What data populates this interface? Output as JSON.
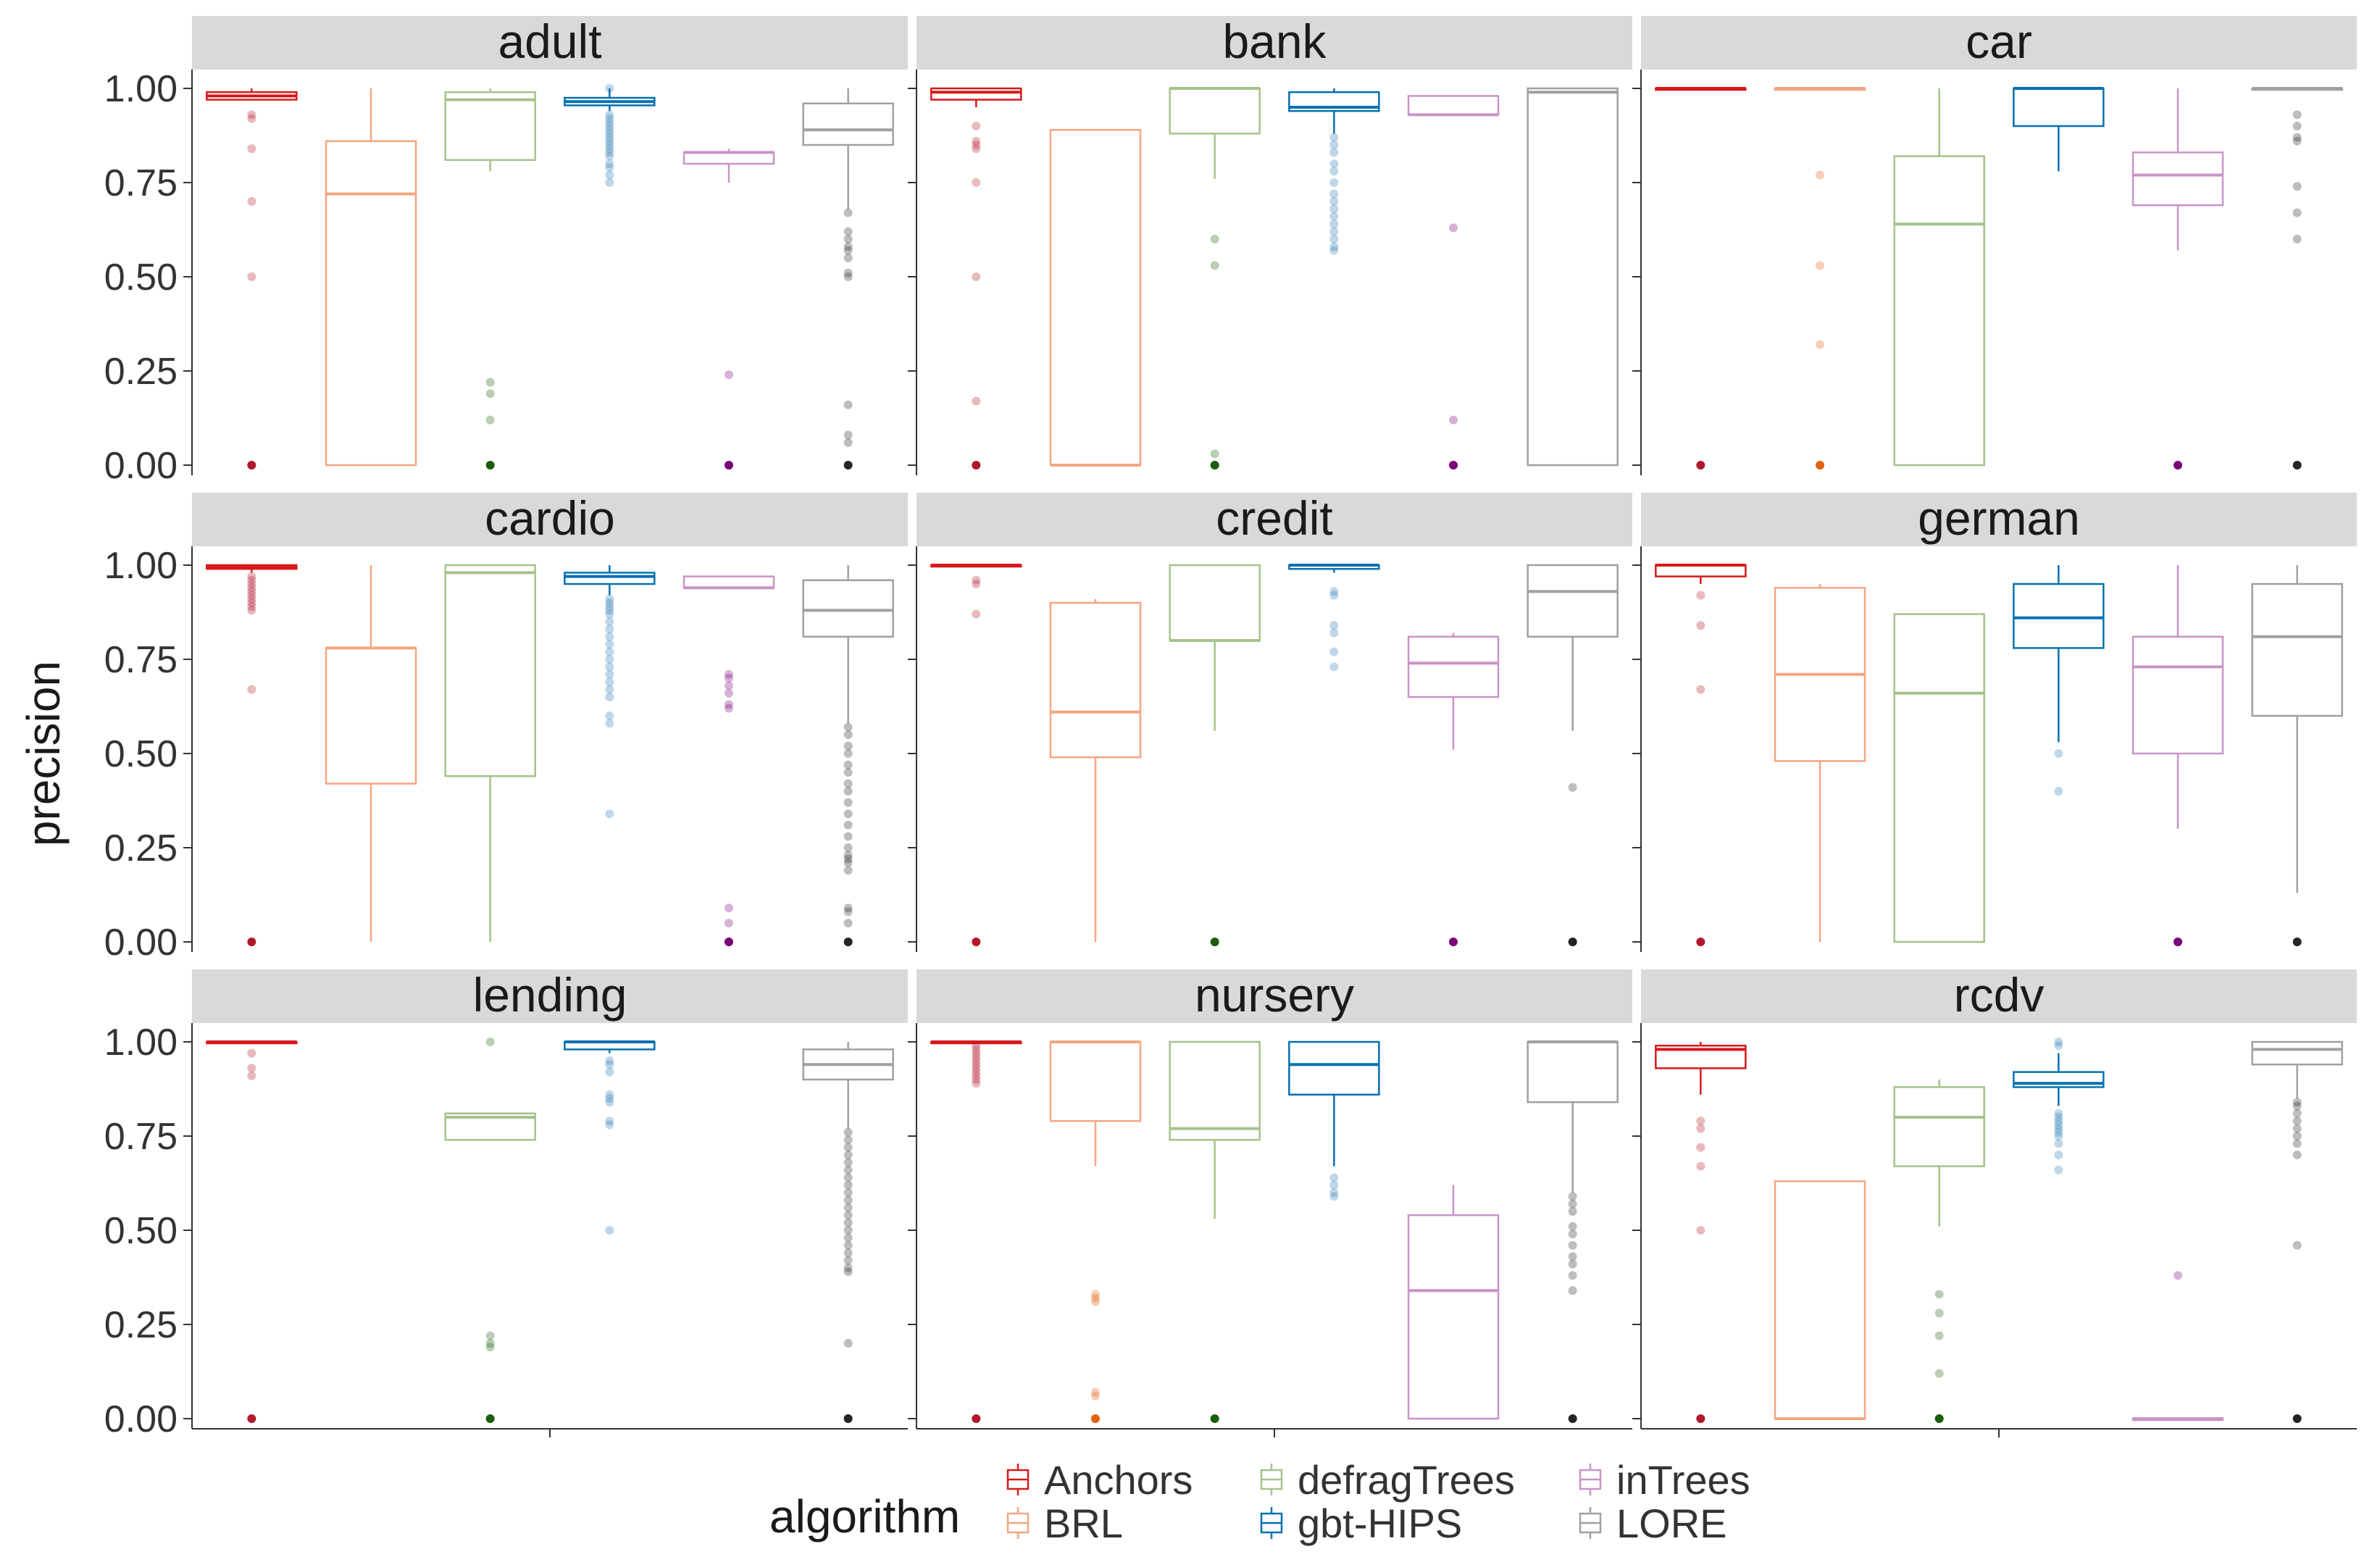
{
  "chart_data": {
    "type": "boxplot",
    "ylabel": "precision",
    "ylim": [
      0,
      1
    ],
    "yticks": [
      "0.00",
      "0.25",
      "0.50",
      "0.75",
      "1.00"
    ],
    "legend": {
      "title": "algorithm",
      "placement": "bottom",
      "entries": [
        "Anchors",
        "BRL",
        "defragTrees",
        "gbt-HIPS",
        "inTrees",
        "LORE"
      ]
    },
    "series_colors": {
      "Anchors": "#d7191c",
      "BRL": "#f4a582",
      "defragTrees": "#a6c28b",
      "gbt-HIPS": "#0571b0",
      "inTrees": "#c994c7",
      "LORE": "#a0a0a0"
    },
    "outlier_colors": {
      "Anchors": "#b2182b",
      "BRL": "#e0610e",
      "defragTrees": "#1a5e0a",
      "gbt-HIPS": "#2c7bb6",
      "inTrees": "#7a0177",
      "LORE": "#252525"
    },
    "panels": [
      {
        "name": "adult",
        "boxes": [
          {
            "alg": "Anchors",
            "q1": 0.97,
            "median": 0.98,
            "q3": 0.99,
            "whisker_low": 0.97,
            "whisker_high": 1.0,
            "outliers": [
              0.93,
              0.92,
              0.84,
              0.7,
              0.5,
              0.0
            ]
          },
          {
            "alg": "BRL",
            "q1": 0.0,
            "median": 0.72,
            "q3": 0.86,
            "whisker_low": 0.0,
            "whisker_high": 1.0,
            "outliers": []
          },
          {
            "alg": "defragTrees",
            "q1": 0.81,
            "median": 0.97,
            "q3": 0.99,
            "whisker_low": 0.78,
            "whisker_high": 1.0,
            "outliers": [
              0.22,
              0.19,
              0.12,
              0.0
            ]
          },
          {
            "alg": "gbt-HIPS",
            "q1": 0.955,
            "median": 0.965,
            "q3": 0.975,
            "whisker_low": 0.94,
            "whisker_high": 1.0,
            "outliers": [
              0.93,
              0.92,
              0.91,
              0.9,
              0.89,
              0.88,
              0.87,
              0.86,
              0.85,
              0.84,
              0.83,
              0.82,
              0.8,
              0.79,
              0.77,
              0.75,
              1.0
            ]
          },
          {
            "alg": "inTrees",
            "q1": 0.8,
            "median": 0.83,
            "q3": 0.83,
            "whisker_low": 0.75,
            "whisker_high": 0.84,
            "outliers": [
              0.24,
              0.0
            ]
          },
          {
            "alg": "LORE",
            "q1": 0.85,
            "median": 0.89,
            "q3": 0.96,
            "whisker_low": 0.68,
            "whisker_high": 1.0,
            "outliers": [
              0.67,
              0.62,
              0.6,
              0.58,
              0.57,
              0.55,
              0.51,
              0.5,
              0.16,
              0.08,
              0.06,
              0.0
            ]
          }
        ]
      },
      {
        "name": "bank",
        "boxes": [
          {
            "alg": "Anchors",
            "q1": 0.97,
            "median": 0.99,
            "q3": 1.0,
            "whisker_low": 0.95,
            "whisker_high": 1.0,
            "outliers": [
              0.9,
              0.86,
              0.85,
              0.84,
              0.75,
              0.5,
              0.17,
              0.0
            ]
          },
          {
            "alg": "BRL",
            "q1": 0.0,
            "median": 0.0,
            "q3": 0.89,
            "whisker_low": 0.0,
            "whisker_high": 0.89,
            "outliers": []
          },
          {
            "alg": "defragTrees",
            "q1": 0.88,
            "median": 1.0,
            "q3": 1.0,
            "whisker_low": 0.76,
            "whisker_high": 1.0,
            "outliers": [
              0.6,
              0.53,
              0.03,
              0.0
            ]
          },
          {
            "alg": "gbt-HIPS",
            "q1": 0.94,
            "median": 0.95,
            "q3": 0.99,
            "whisker_low": 0.88,
            "whisker_high": 1.0,
            "outliers": [
              0.87,
              0.85,
              0.83,
              0.8,
              0.78,
              0.75,
              0.72,
              0.7,
              0.68,
              0.66,
              0.64,
              0.62,
              0.6,
              0.58,
              0.57
            ]
          },
          {
            "alg": "inTrees",
            "q1": 0.93,
            "median": 0.93,
            "q3": 0.98,
            "whisker_low": 0.93,
            "whisker_high": 0.98,
            "outliers": [
              0.63,
              0.12,
              0.0
            ]
          },
          {
            "alg": "LORE",
            "q1": 0.0,
            "median": 0.99,
            "q3": 1.0,
            "whisker_low": 0.0,
            "whisker_high": 1.0,
            "outliers": []
          }
        ]
      },
      {
        "name": "car",
        "boxes": [
          {
            "alg": "Anchors",
            "q1": 1.0,
            "median": 1.0,
            "q3": 1.0,
            "whisker_low": 1.0,
            "whisker_high": 1.0,
            "outliers": [
              0.0
            ]
          },
          {
            "alg": "BRL",
            "q1": 1.0,
            "median": 1.0,
            "q3": 1.0,
            "whisker_low": 1.0,
            "whisker_high": 1.0,
            "outliers": [
              0.77,
              0.53,
              0.32,
              0.0
            ]
          },
          {
            "alg": "defragTrees",
            "q1": 0.0,
            "median": 0.64,
            "q3": 0.82,
            "whisker_low": 0.0,
            "whisker_high": 1.0,
            "outliers": []
          },
          {
            "alg": "gbt-HIPS",
            "q1": 0.9,
            "median": 1.0,
            "q3": 1.0,
            "whisker_low": 0.78,
            "whisker_high": 1.0,
            "outliers": []
          },
          {
            "alg": "inTrees",
            "q1": 0.69,
            "median": 0.77,
            "q3": 0.83,
            "whisker_low": 0.57,
            "whisker_high": 1.0,
            "outliers": [
              0.0
            ]
          },
          {
            "alg": "LORE",
            "q1": 1.0,
            "median": 1.0,
            "q3": 1.0,
            "whisker_low": 1.0,
            "whisker_high": 1.0,
            "outliers": [
              0.93,
              0.9,
              0.87,
              0.86,
              0.74,
              0.67,
              0.6,
              0.0
            ]
          }
        ]
      },
      {
        "name": "cardio",
        "boxes": [
          {
            "alg": "Anchors",
            "q1": 0.99,
            "median": 0.995,
            "q3": 1.0,
            "whisker_low": 0.98,
            "whisker_high": 1.0,
            "outliers": [
              0.97,
              0.96,
              0.95,
              0.94,
              0.93,
              0.92,
              0.91,
              0.9,
              0.89,
              0.88,
              0.67,
              0.0
            ]
          },
          {
            "alg": "BRL",
            "q1": 0.42,
            "median": 0.78,
            "q3": 0.78,
            "whisker_low": 0.0,
            "whisker_high": 1.0,
            "outliers": []
          },
          {
            "alg": "defragTrees",
            "q1": 0.44,
            "median": 0.98,
            "q3": 1.0,
            "whisker_low": 0.0,
            "whisker_high": 1.0,
            "outliers": []
          },
          {
            "alg": "gbt-HIPS",
            "q1": 0.95,
            "median": 0.97,
            "q3": 0.98,
            "whisker_low": 0.92,
            "whisker_high": 1.0,
            "outliers": [
              0.91,
              0.9,
              0.89,
              0.88,
              0.87,
              0.85,
              0.83,
              0.81,
              0.79,
              0.77,
              0.75,
              0.73,
              0.71,
              0.69,
              0.67,
              0.65,
              0.6,
              0.58,
              0.34
            ]
          },
          {
            "alg": "inTrees",
            "q1": 0.94,
            "median": 0.94,
            "q3": 0.97,
            "whisker_low": 0.94,
            "whisker_high": 0.97,
            "outliers": [
              0.71,
              0.7,
              0.68,
              0.66,
              0.63,
              0.62,
              0.09,
              0.05,
              0.0
            ]
          },
          {
            "alg": "LORE",
            "q1": 0.81,
            "median": 0.88,
            "q3": 0.96,
            "whisker_low": 0.58,
            "whisker_high": 1.0,
            "outliers": [
              0.57,
              0.55,
              0.52,
              0.5,
              0.47,
              0.45,
              0.42,
              0.4,
              0.37,
              0.34,
              0.31,
              0.28,
              0.25,
              0.23,
              0.22,
              0.21,
              0.19,
              0.09,
              0.08,
              0.05,
              0.0
            ]
          }
        ]
      },
      {
        "name": "credit",
        "boxes": [
          {
            "alg": "Anchors",
            "q1": 1.0,
            "median": 1.0,
            "q3": 1.0,
            "whisker_low": 1.0,
            "whisker_high": 1.0,
            "outliers": [
              0.96,
              0.95,
              0.87,
              0.0
            ]
          },
          {
            "alg": "BRL",
            "q1": 0.49,
            "median": 0.61,
            "q3": 0.9,
            "whisker_low": 0.0,
            "whisker_high": 0.91,
            "outliers": []
          },
          {
            "alg": "defragTrees",
            "q1": 0.8,
            "median": 0.8,
            "q3": 1.0,
            "whisker_low": 0.56,
            "whisker_high": 1.0,
            "outliers": [
              0.0
            ]
          },
          {
            "alg": "gbt-HIPS",
            "q1": 0.99,
            "median": 1.0,
            "q3": 1.0,
            "whisker_low": 0.98,
            "whisker_high": 1.0,
            "outliers": [
              0.93,
              0.92,
              0.84,
              0.82,
              0.77,
              0.73
            ]
          },
          {
            "alg": "inTrees",
            "q1": 0.65,
            "median": 0.74,
            "q3": 0.81,
            "whisker_low": 0.51,
            "whisker_high": 0.82,
            "outliers": [
              0.0
            ]
          },
          {
            "alg": "LORE",
            "q1": 0.81,
            "median": 0.93,
            "q3": 1.0,
            "whisker_low": 0.56,
            "whisker_high": 1.0,
            "outliers": [
              0.41,
              0.0
            ]
          }
        ]
      },
      {
        "name": "german",
        "boxes": [
          {
            "alg": "Anchors",
            "q1": 0.97,
            "median": 1.0,
            "q3": 1.0,
            "whisker_low": 0.95,
            "whisker_high": 1.0,
            "outliers": [
              0.92,
              0.84,
              0.67,
              0.0
            ]
          },
          {
            "alg": "BRL",
            "q1": 0.48,
            "median": 0.71,
            "q3": 0.94,
            "whisker_low": 0.0,
            "whisker_high": 0.95,
            "outliers": []
          },
          {
            "alg": "defragTrees",
            "q1": 0.0,
            "median": 0.66,
            "q3": 0.87,
            "whisker_low": 0.0,
            "whisker_high": 0.87,
            "outliers": []
          },
          {
            "alg": "gbt-HIPS",
            "q1": 0.78,
            "median": 0.86,
            "q3": 0.95,
            "whisker_low": 0.53,
            "whisker_high": 1.0,
            "outliers": [
              0.5,
              0.4
            ]
          },
          {
            "alg": "inTrees",
            "q1": 0.5,
            "median": 0.73,
            "q3": 0.81,
            "whisker_low": 0.3,
            "whisker_high": 1.0,
            "outliers": [
              0.0
            ]
          },
          {
            "alg": "LORE",
            "q1": 0.6,
            "median": 0.81,
            "q3": 0.95,
            "whisker_low": 0.13,
            "whisker_high": 1.0,
            "outliers": [
              0.0
            ]
          }
        ]
      },
      {
        "name": "lending",
        "boxes": [
          {
            "alg": "Anchors",
            "q1": 1.0,
            "median": 1.0,
            "q3": 1.0,
            "whisker_low": 1.0,
            "whisker_high": 1.0,
            "outliers": [
              0.97,
              0.93,
              0.91,
              0.0
            ]
          },
          {
            "alg": "BRL",
            "empty": true
          },
          {
            "alg": "defragTrees",
            "q1": 0.74,
            "median": 0.8,
            "q3": 0.81,
            "whisker_low": 0.74,
            "whisker_high": 0.81,
            "outliers": [
              1.0,
              0.22,
              0.2,
              0.19,
              0.0
            ]
          },
          {
            "alg": "gbt-HIPS",
            "q1": 0.98,
            "median": 1.0,
            "q3": 1.0,
            "whisker_low": 0.97,
            "whisker_high": 1.0,
            "outliers": [
              0.95,
              0.94,
              0.92,
              0.86,
              0.85,
              0.84,
              0.79,
              0.78,
              0.5
            ]
          },
          {
            "alg": "inTrees",
            "empty": true
          },
          {
            "alg": "LORE",
            "q1": 0.9,
            "median": 0.94,
            "q3": 0.98,
            "whisker_low": 0.77,
            "whisker_high": 1.0,
            "outliers": [
              0.76,
              0.74,
              0.72,
              0.7,
              0.68,
              0.66,
              0.64,
              0.62,
              0.6,
              0.58,
              0.56,
              0.54,
              0.52,
              0.5,
              0.48,
              0.46,
              0.44,
              0.42,
              0.4,
              0.39,
              0.2,
              0.0
            ]
          }
        ]
      },
      {
        "name": "nursery",
        "boxes": [
          {
            "alg": "Anchors",
            "q1": 1.0,
            "median": 1.0,
            "q3": 1.0,
            "whisker_low": 1.0,
            "whisker_high": 1.0,
            "outliers": [
              0.99,
              0.98,
              0.97,
              0.96,
              0.95,
              0.94,
              0.93,
              0.92,
              0.91,
              0.9,
              0.89,
              0.0
            ]
          },
          {
            "alg": "BRL",
            "q1": 0.79,
            "median": 1.0,
            "q3": 1.0,
            "whisker_low": 0.67,
            "whisker_high": 1.0,
            "outliers": [
              0.33,
              0.32,
              0.31,
              0.07,
              0.06,
              0.0
            ]
          },
          {
            "alg": "defragTrees",
            "q1": 0.74,
            "median": 0.77,
            "q3": 1.0,
            "whisker_low": 0.53,
            "whisker_high": 1.0,
            "outliers": [
              0.0
            ]
          },
          {
            "alg": "gbt-HIPS",
            "q1": 0.86,
            "median": 0.94,
            "q3": 1.0,
            "whisker_low": 0.67,
            "whisker_high": 1.0,
            "outliers": [
              0.64,
              0.62,
              0.6,
              0.59
            ]
          },
          {
            "alg": "inTrees",
            "q1": 0.0,
            "median": 0.34,
            "q3": 0.54,
            "whisker_low": 0.0,
            "whisker_high": 0.62,
            "outliers": []
          },
          {
            "alg": "LORE",
            "q1": 0.84,
            "median": 1.0,
            "q3": 1.0,
            "whisker_low": 0.6,
            "whisker_high": 1.0,
            "outliers": [
              0.59,
              0.57,
              0.55,
              0.51,
              0.49,
              0.46,
              0.43,
              0.41,
              0.38,
              0.34,
              0.0
            ]
          }
        ]
      },
      {
        "name": "rcdv",
        "boxes": [
          {
            "alg": "Anchors",
            "q1": 0.93,
            "median": 0.98,
            "q3": 0.99,
            "whisker_low": 0.86,
            "whisker_high": 1.0,
            "outliers": [
              0.79,
              0.77,
              0.72,
              0.67,
              0.5,
              0.0
            ]
          },
          {
            "alg": "BRL",
            "q1": 0.0,
            "median": 0.0,
            "q3": 0.63,
            "whisker_low": 0.0,
            "whisker_high": 0.63,
            "outliers": []
          },
          {
            "alg": "defragTrees",
            "q1": 0.67,
            "median": 0.8,
            "q3": 0.88,
            "whisker_low": 0.51,
            "whisker_high": 0.9,
            "outliers": [
              0.33,
              0.28,
              0.22,
              0.12,
              0.0
            ]
          },
          {
            "alg": "gbt-HIPS",
            "q1": 0.88,
            "median": 0.89,
            "q3": 0.92,
            "whisker_low": 0.83,
            "whisker_high": 0.97,
            "outliers": [
              1.0,
              0.99,
              0.81,
              0.8,
              0.79,
              0.78,
              0.77,
              0.76,
              0.75,
              0.73,
              0.7,
              0.66
            ]
          },
          {
            "alg": "inTrees",
            "q1": 0.0,
            "median": 0.0,
            "q3": 0.0,
            "whisker_low": 0.0,
            "whisker_high": 0.0,
            "outliers": [
              0.38
            ]
          },
          {
            "alg": "LORE",
            "q1": 0.94,
            "median": 0.98,
            "q3": 1.0,
            "whisker_low": 0.85,
            "whisker_high": 1.0,
            "outliers": [
              0.84,
              0.83,
              0.81,
              0.79,
              0.77,
              0.75,
              0.73,
              0.7,
              0.46,
              0.0
            ]
          }
        ]
      }
    ]
  }
}
